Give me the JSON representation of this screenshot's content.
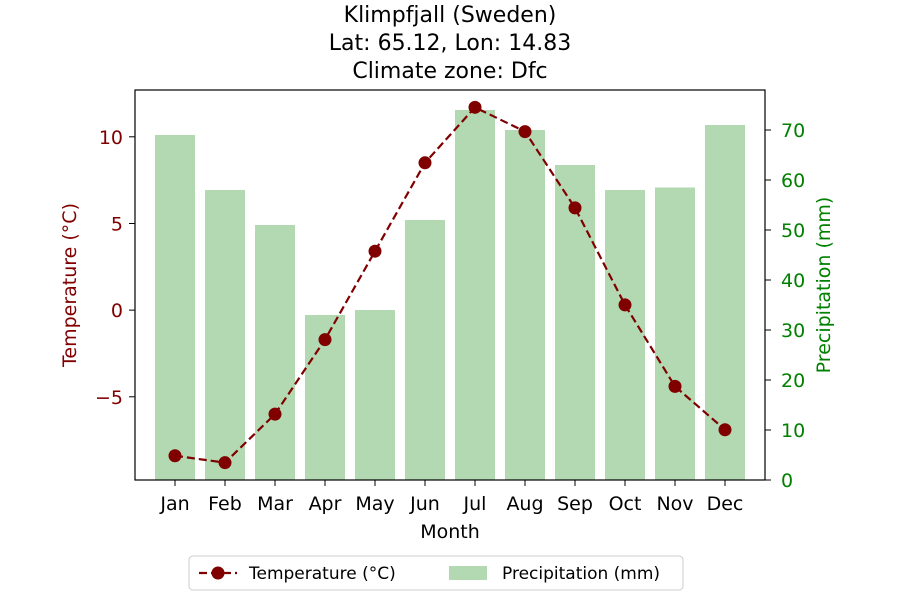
{
  "chart_data": {
    "type": "bar+line",
    "title_lines": [
      "Klimpfjall (Sweden)",
      "Lat: 65.12, Lon: 14.83",
      "Climate zone: Dfc"
    ],
    "xlabel": "Month",
    "ylabel_left": "Temperature (°C)",
    "ylabel_right": "Precipitation (mm)",
    "categories": [
      "Jan",
      "Feb",
      "Mar",
      "Apr",
      "May",
      "Jun",
      "Jul",
      "Aug",
      "Sep",
      "Oct",
      "Nov",
      "Dec"
    ],
    "series": [
      {
        "name": "Temperature (°C)",
        "kind": "line",
        "axis": "left",
        "color": "#800000",
        "values": [
          -8.4,
          -8.8,
          -6.0,
          -1.7,
          3.4,
          8.5,
          11.7,
          10.3,
          5.9,
          0.3,
          -4.4,
          -6.9
        ]
      },
      {
        "name": "Precipitation (mm)",
        "kind": "bar",
        "axis": "right",
        "color": "#b2d9b2",
        "values": [
          69,
          58,
          51,
          33,
          34,
          52,
          74,
          70,
          63,
          58,
          58.5,
          71
        ]
      }
    ],
    "ylim_left": [
      -9.8,
      12.7
    ],
    "yticks_left": [
      -5,
      0,
      5,
      10
    ],
    "ytick_labels_left": [
      "−5",
      "0",
      "5",
      "10"
    ],
    "ylim_right": [
      0,
      78
    ],
    "yticks_right": [
      0,
      10,
      20,
      30,
      40,
      50,
      60,
      70
    ],
    "left_axis_color": "#800000",
    "right_axis_color": "#008000",
    "grid": false,
    "legend_position": "bottom-center"
  }
}
